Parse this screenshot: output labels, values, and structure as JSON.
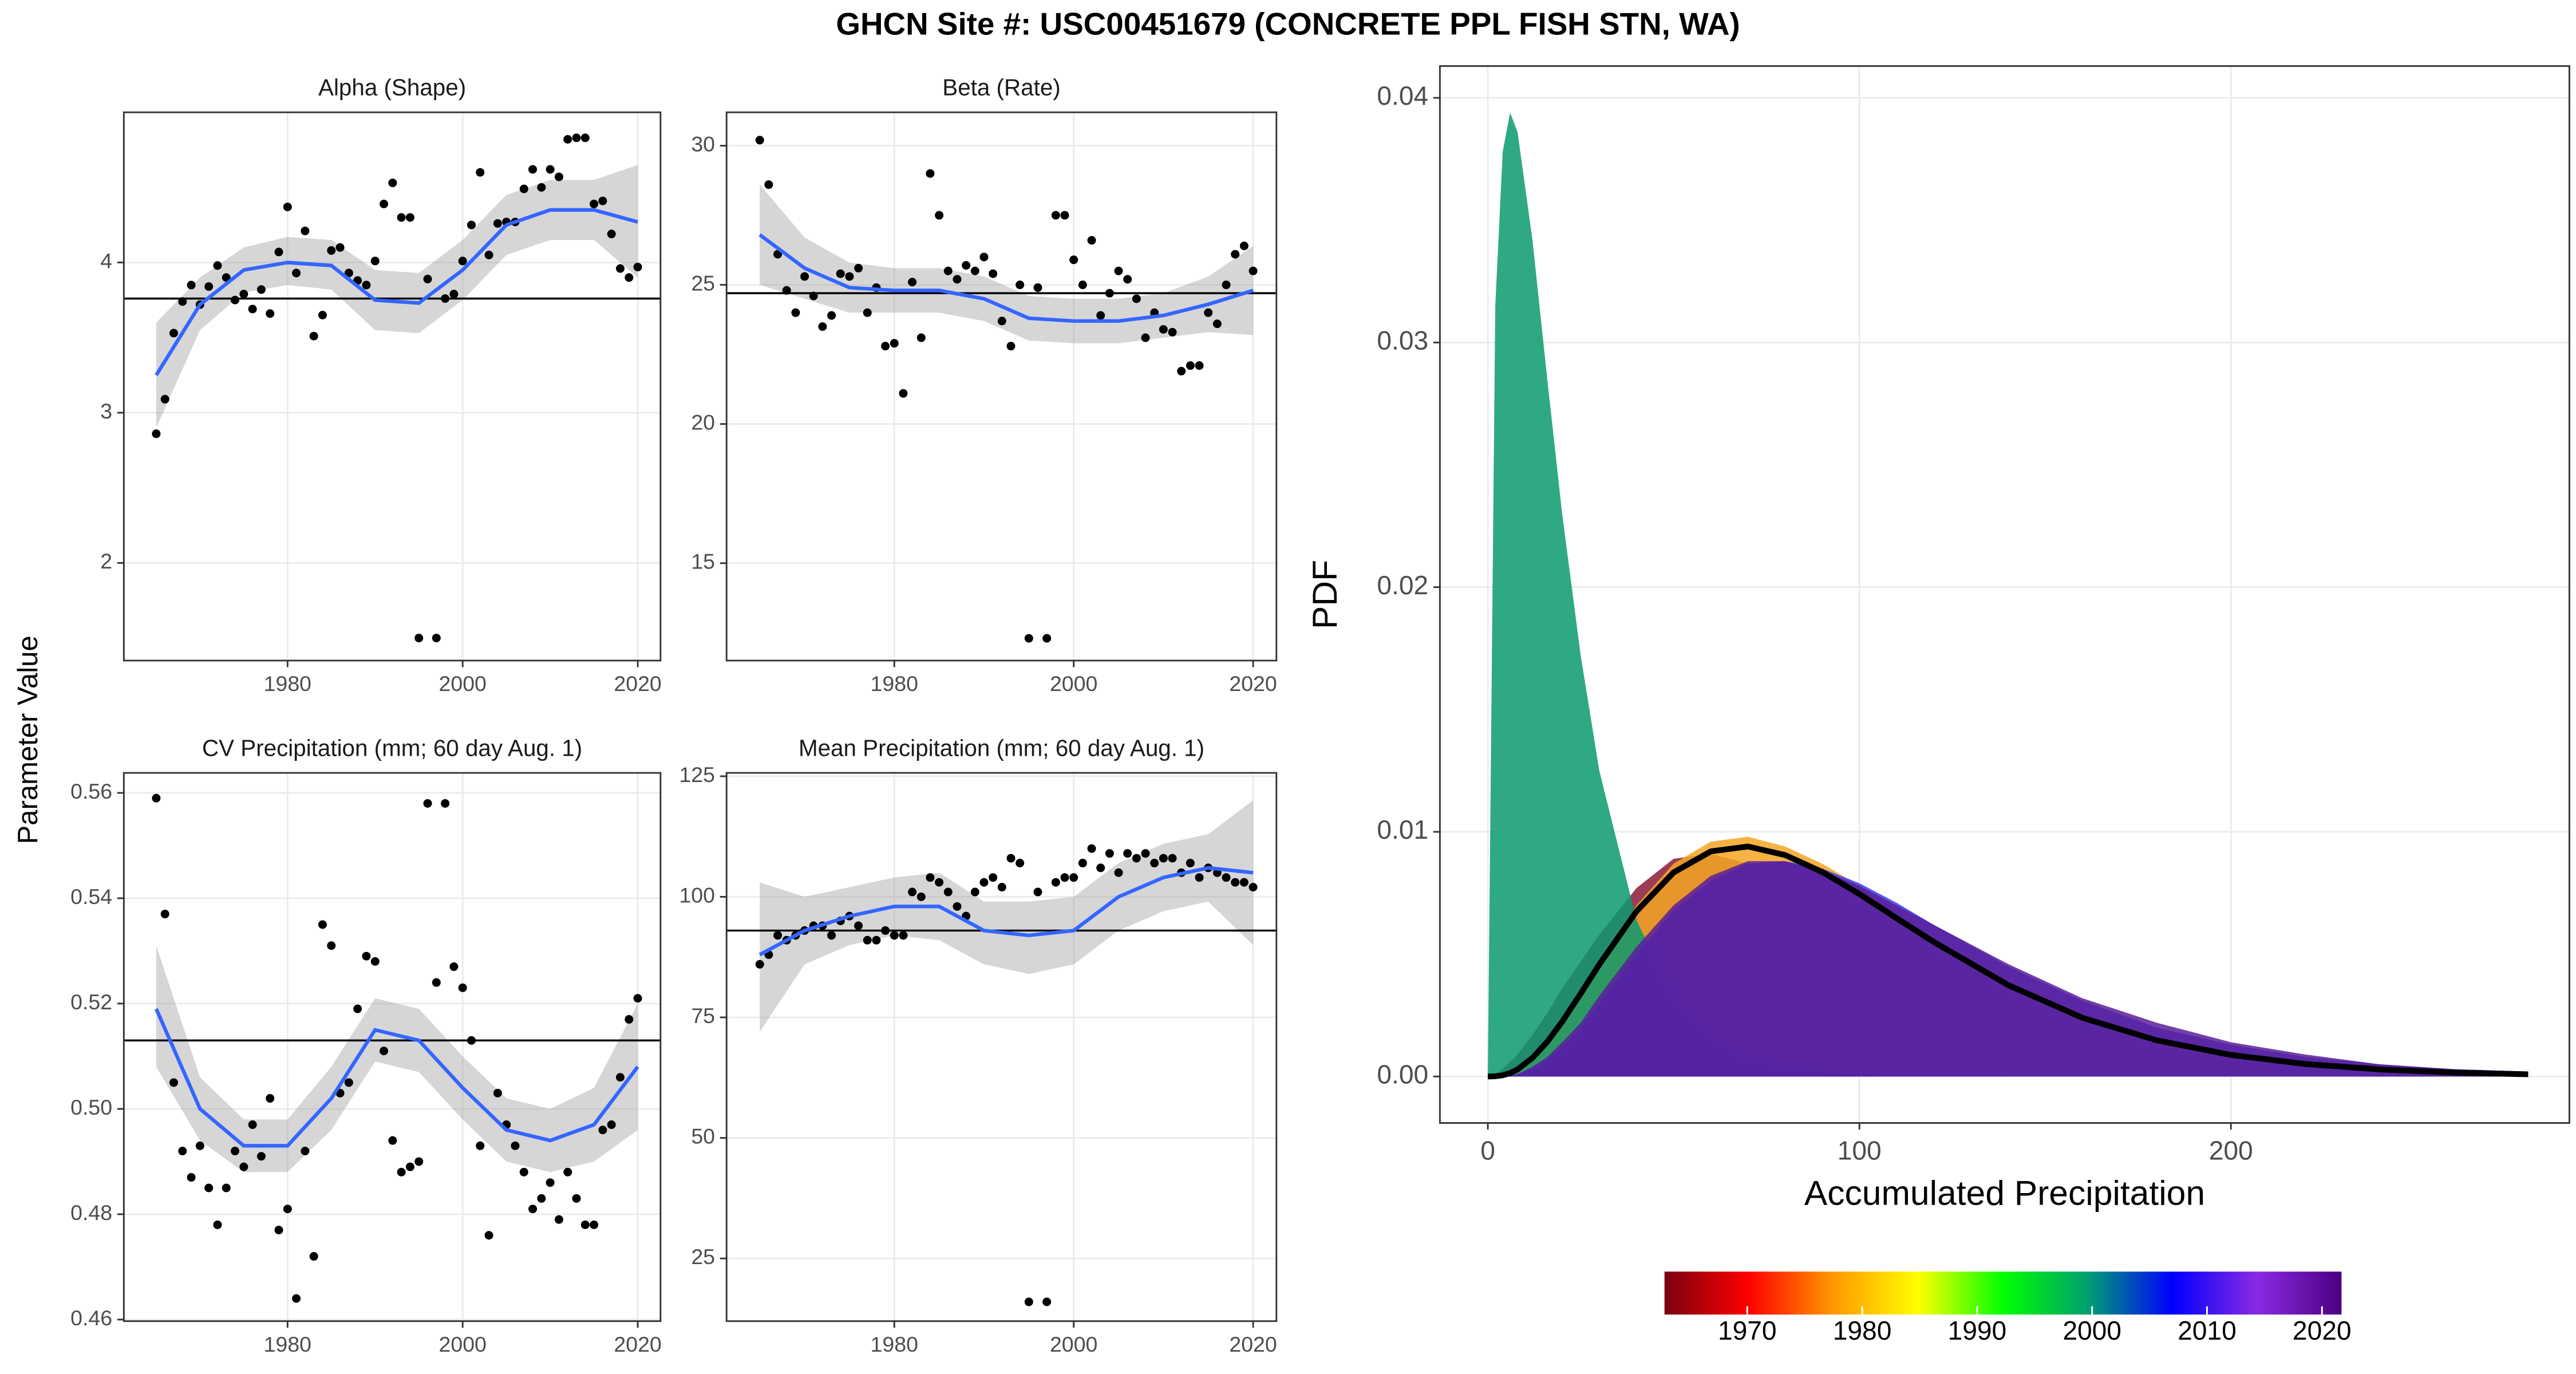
{
  "title": "GHCN Site #: USC00451679 (CONCRETE PPL FISH STN, WA)",
  "y_label": "Parameter Value",
  "chart_data": [
    {
      "type": "scatter",
      "title": "Alpha (Shape)",
      "x": [
        1965,
        1966,
        1967,
        1968,
        1969,
        1970,
        1971,
        1972,
        1973,
        1974,
        1975,
        1976,
        1977,
        1978,
        1979,
        1980,
        1981,
        1982,
        1983,
        1984,
        1985,
        1986,
        1987,
        1988,
        1989,
        1990,
        1991,
        1992,
        1993,
        1994,
        1995,
        1996,
        1997,
        1998,
        1999,
        2000,
        2001,
        2002,
        2003,
        2004,
        2005,
        2006,
        2007,
        2008,
        2009,
        2010,
        2011,
        2012,
        2013,
        2014,
        2015,
        2016,
        2017,
        2018,
        2019,
        2020
      ],
      "values": [
        2.86,
        3.09,
        3.53,
        3.74,
        3.85,
        3.72,
        3.84,
        3.98,
        3.9,
        3.75,
        3.79,
        3.69,
        3.82,
        3.66,
        4.07,
        4.37,
        3.93,
        4.21,
        3.51,
        3.65,
        4.08,
        4.1,
        3.93,
        3.88,
        3.85,
        4.01,
        4.39,
        4.53,
        4.3,
        4.3,
        1.5,
        3.89,
        1.5,
        3.76,
        3.79,
        4.01,
        4.25,
        4.6,
        4.05,
        4.26,
        4.27,
        4.27,
        4.49,
        4.62,
        4.5,
        4.62,
        4.57,
        4.82,
        4.83,
        4.83,
        4.39,
        4.41,
        4.19,
        3.96,
        3.9,
        3.97
      ],
      "color": "#000000",
      "hline": 3.76,
      "smooth": {
        "color": "#3366ff",
        "x": [
          1965,
          1970,
          1975,
          1980,
          1985,
          1990,
          1995,
          2000,
          2005,
          2010,
          2015,
          2020
        ],
        "values": [
          3.25,
          3.72,
          3.95,
          4.0,
          3.98,
          3.75,
          3.73,
          3.95,
          4.25,
          4.35,
          4.35,
          4.27
        ],
        "lower": [
          2.9,
          3.55,
          3.8,
          3.85,
          3.82,
          3.55,
          3.53,
          3.75,
          4.05,
          4.15,
          4.15,
          3.9
        ],
        "upper": [
          3.6,
          3.9,
          4.1,
          4.17,
          4.15,
          3.95,
          3.93,
          4.15,
          4.45,
          4.55,
          4.55,
          4.65
        ]
      },
      "xlim": [
        1961.3,
        2022.6
      ],
      "ylim": [
        1.35,
        5.0
      ],
      "xticks": [
        1980,
        2000,
        2020
      ],
      "yticks": [
        2,
        3,
        4
      ],
      "grid": true
    },
    {
      "type": "scatter",
      "title": "Beta (Rate)",
      "x": [
        1965,
        1966,
        1967,
        1968,
        1969,
        1970,
        1971,
        1972,
        1973,
        1974,
        1975,
        1976,
        1977,
        1978,
        1979,
        1980,
        1981,
        1982,
        1983,
        1984,
        1985,
        1986,
        1987,
        1988,
        1989,
        1990,
        1991,
        1992,
        1993,
        1994,
        1995,
        1996,
        1997,
        1998,
        1999,
        2000,
        2001,
        2002,
        2003,
        2004,
        2005,
        2006,
        2007,
        2008,
        2009,
        2010,
        2011,
        2012,
        2013,
        2014,
        2015,
        2016,
        2017,
        2018,
        2019,
        2020
      ],
      "values": [
        30.2,
        28.6,
        26.1,
        24.8,
        24.0,
        25.3,
        24.6,
        23.5,
        23.9,
        25.4,
        25.3,
        25.6,
        24.0,
        24.9,
        22.8,
        22.9,
        21.1,
        25.1,
        23.1,
        29.0,
        27.5,
        25.5,
        25.2,
        25.7,
        25.5,
        26.0,
        25.4,
        23.7,
        22.8,
        25.0,
        12.3,
        24.9,
        12.3,
        27.5,
        27.5,
        25.9,
        25.0,
        26.6,
        23.9,
        24.7,
        25.5,
        25.2,
        24.5,
        23.1,
        24.0,
        23.4,
        23.3,
        21.9,
        22.1,
        22.1,
        24.0,
        23.6,
        25.0,
        26.1,
        26.4,
        25.5
      ],
      "color": "#000000",
      "hline": 24.7,
      "smooth": {
        "color": "#3366ff",
        "x": [
          1965,
          1970,
          1975,
          1980,
          1985,
          1990,
          1995,
          2000,
          2005,
          2010,
          2015,
          2020
        ],
        "values": [
          26.8,
          25.6,
          24.9,
          24.8,
          24.8,
          24.5,
          23.8,
          23.7,
          23.7,
          23.9,
          24.3,
          24.8
        ],
        "lower": [
          25.0,
          24.5,
          24.0,
          24.0,
          24.0,
          23.7,
          23.0,
          22.9,
          22.9,
          23.1,
          23.3,
          23.2
        ],
        "upper": [
          28.6,
          26.7,
          25.8,
          25.6,
          25.6,
          25.3,
          24.6,
          24.5,
          24.5,
          24.7,
          25.3,
          26.4
        ]
      },
      "xlim": [
        1961.3,
        2022.6
      ],
      "ylim": [
        11.5,
        31.2
      ],
      "xticks": [
        1980,
        2000,
        2020
      ],
      "yticks": [
        15,
        20,
        25,
        30
      ],
      "grid": true
    },
    {
      "type": "scatter",
      "title": "CV Precipitation (mm; 60 day Aug. 1)",
      "x": [
        1965,
        1966,
        1967,
        1968,
        1969,
        1970,
        1971,
        1972,
        1973,
        1974,
        1975,
        1976,
        1977,
        1978,
        1979,
        1980,
        1981,
        1982,
        1983,
        1984,
        1985,
        1986,
        1987,
        1988,
        1989,
        1990,
        1991,
        1992,
        1993,
        1994,
        1995,
        1996,
        1997,
        1998,
        1999,
        2000,
        2001,
        2002,
        2003,
        2004,
        2005,
        2006,
        2007,
        2008,
        2009,
        2010,
        2011,
        2012,
        2013,
        2014,
        2015,
        2016,
        2017,
        2018,
        2019,
        2020
      ],
      "values": [
        0.559,
        0.537,
        0.505,
        0.492,
        0.487,
        0.493,
        0.485,
        0.478,
        0.485,
        0.492,
        0.489,
        0.497,
        0.491,
        0.502,
        0.477,
        0.481,
        0.464,
        0.492,
        0.472,
        0.535,
        0.531,
        0.503,
        0.505,
        0.519,
        0.529,
        0.528,
        0.511,
        0.494,
        0.488,
        0.489,
        0.49,
        0.558,
        0.524,
        0.558,
        0.527,
        0.523,
        0.513,
        0.493,
        0.476,
        0.503,
        0.497,
        0.493,
        0.488,
        0.481,
        0.483,
        0.486,
        0.479,
        0.488,
        0.483,
        0.478,
        0.478,
        0.496,
        0.497,
        0.506,
        0.517,
        0.521
      ],
      "color": "#000000",
      "hline": 0.513,
      "smooth": {
        "color": "#3366ff",
        "x": [
          1965,
          1970,
          1975,
          1980,
          1985,
          1990,
          1995,
          2000,
          2005,
          2010,
          2015,
          2020
        ],
        "values": [
          0.519,
          0.5,
          0.493,
          0.493,
          0.502,
          0.515,
          0.513,
          0.504,
          0.496,
          0.494,
          0.497,
          0.508
        ],
        "lower": [
          0.508,
          0.494,
          0.488,
          0.488,
          0.496,
          0.509,
          0.507,
          0.498,
          0.49,
          0.488,
          0.49,
          0.496
        ],
        "upper": [
          0.531,
          0.506,
          0.498,
          0.498,
          0.508,
          0.521,
          0.519,
          0.51,
          0.502,
          0.5,
          0.504,
          0.52
        ]
      },
      "xlim": [
        1961.3,
        2022.6
      ],
      "ylim": [
        0.4597,
        0.5638
      ],
      "xticks": [
        1980,
        2000,
        2020
      ],
      "yticks": [
        0.46,
        0.48,
        {
          "value": 0.5,
          "label": "0.50"
        },
        0.52,
        0.54,
        0.56
      ],
      "grid": true
    },
    {
      "type": "scatter",
      "title": "Mean Precipitation (mm; 60 day Aug. 1)",
      "x": [
        1965,
        1966,
        1967,
        1968,
        1969,
        1970,
        1971,
        1972,
        1973,
        1974,
        1975,
        1976,
        1977,
        1978,
        1979,
        1980,
        1981,
        1982,
        1983,
        1984,
        1985,
        1986,
        1987,
        1988,
        1989,
        1990,
        1991,
        1992,
        1993,
        1994,
        1995,
        1996,
        1997,
        1998,
        1999,
        2000,
        2001,
        2002,
        2003,
        2004,
        2005,
        2006,
        2007,
        2008,
        2009,
        2010,
        2011,
        2012,
        2013,
        2014,
        2015,
        2016,
        2017,
        2018,
        2019,
        2020
      ],
      "values": [
        86,
        88,
        92,
        91,
        92,
        93,
        94,
        94,
        92,
        95,
        96,
        94,
        91,
        91,
        93,
        92,
        92,
        101,
        100,
        104,
        103,
        101,
        98,
        96,
        101,
        103,
        104,
        102,
        108,
        107,
        16,
        101,
        16,
        103,
        104,
        104,
        107,
        110,
        106,
        109,
        105,
        109,
        108,
        109,
        107,
        108,
        108,
        105,
        107,
        104,
        106,
        105,
        104,
        103,
        103,
        102
      ],
      "color": "#000000",
      "hline": 93,
      "smooth": {
        "color": "#3366ff",
        "x": [
          1965,
          1970,
          1975,
          1980,
          1985,
          1990,
          1995,
          2000,
          2005,
          2010,
          2015,
          2020
        ],
        "values": [
          88,
          93,
          96,
          98,
          98,
          93,
          92,
          93,
          100,
          104,
          106,
          105
        ],
        "lower": [
          72,
          86,
          90,
          92,
          91,
          86,
          84,
          86,
          93,
          97,
          99,
          90
        ],
        "upper": [
          103,
          100,
          102,
          104,
          105,
          99,
          99,
          100,
          107,
          111,
          113,
          120
        ]
      },
      "xlim": [
        1961.3,
        2022.6
      ],
      "ylim": [
        12.0,
        125.7
      ],
      "xticks": [
        1980,
        2000,
        2020
      ],
      "yticks": [
        25,
        50,
        75,
        100,
        125
      ],
      "grid": true
    },
    {
      "type": "density",
      "xlabel": "Accumulated Precipitation",
      "ylabel": "PDF",
      "x": [
        0,
        2,
        4,
        6,
        8,
        12,
        16,
        20,
        25,
        30,
        40,
        50,
        60,
        70,
        80,
        90,
        100,
        110,
        120,
        140,
        160,
        180,
        200,
        220,
        240,
        260,
        280
      ],
      "series": [
        {
          "color": "#8b1a3a",
          "style": "area",
          "values": [
            0,
            0.0001,
            0.0003,
            0.0006,
            0.0009,
            0.0017,
            0.0026,
            0.0036,
            0.0047,
            0.0058,
            0.0077,
            0.0089,
            0.0091,
            0.0087,
            0.0079,
            0.0069,
            0.0059,
            0.0049,
            0.004,
            0.0026,
            0.0016,
            0.001,
            0.0006,
            0.0004,
            0.0002,
            0.0001,
            0.0001
          ]
        },
        {
          "color": "#f5a623",
          "style": "area",
          "values": [
            0,
            1e-05,
            5e-05,
            0.00015,
            0.0003,
            0.0008,
            0.0015,
            0.0023,
            0.0035,
            0.0048,
            0.007,
            0.0087,
            0.0096,
            0.0098,
            0.0094,
            0.0087,
            0.0078,
            0.0067,
            0.0057,
            0.0039,
            0.0025,
            0.0015,
            0.0009,
            0.0005,
            0.0003,
            0.0002,
            0.0001
          ]
        },
        {
          "color": "#0a9a6e",
          "style": "area",
          "values": [
            0,
            0.0315,
            0.0378,
            0.0394,
            0.0386,
            0.0342,
            0.0285,
            0.023,
            0.0172,
            0.0125,
            0.0064,
            0.0032,
            0.00154,
            0.00074,
            0.00035,
            0.00017,
            8e-05,
            4e-05,
            2e-05,
            0,
            0,
            0,
            0,
            0,
            0,
            0,
            0
          ]
        },
        {
          "color": "#3a3af0",
          "style": "area",
          "values": [
            0,
            0,
            2e-05,
            5e-05,
            0.0001,
            0.0003,
            0.0007,
            0.0012,
            0.002,
            0.003,
            0.005,
            0.0068,
            0.008,
            0.0087,
            0.0088,
            0.0085,
            0.0079,
            0.0071,
            0.0062,
            0.0045,
            0.0031,
            0.002,
            0.0013,
            0.0008,
            0.0005,
            0.0003,
            0.0002
          ]
        },
        {
          "color": "#5a1e9a",
          "style": "area",
          "values": [
            0,
            0,
            2e-05,
            5e-05,
            0.0001,
            0.0004,
            0.0008,
            0.0014,
            0.0022,
            0.0033,
            0.0053,
            0.007,
            0.0082,
            0.0088,
            0.0088,
            0.0084,
            0.0078,
            0.007,
            0.0062,
            0.0046,
            0.0032,
            0.0022,
            0.0014,
            0.0009,
            0.0005,
            0.0003,
            0.0002
          ]
        },
        {
          "color": "#000000",
          "style": "line",
          "values": [
            0,
            1e-05,
            5e-05,
            0.00014,
            0.00029,
            0.00076,
            0.00142,
            0.00224,
            0.00339,
            0.00458,
            0.00675,
            0.00834,
            0.0092,
            0.0094,
            0.00905,
            0.00836,
            0.00746,
            0.00647,
            0.0055,
            0.00374,
            0.0024,
            0.00148,
            0.00088,
            0.00051,
            0.00029,
            0.00016,
            9e-05
          ]
        }
      ],
      "xlim": [
        -12.9,
        291.1
      ],
      "ylim": [
        -0.0019,
        0.0413
      ],
      "xticks": [
        0,
        100,
        200
      ],
      "yticks": [
        {
          "value": 0,
          "label": "0.00"
        },
        0.01,
        0.02,
        0.03,
        0.04
      ],
      "grid": true
    }
  ],
  "colorbar": {
    "limits": [
      1962.8,
      2021.7
    ],
    "ticks": [
      1970,
      1980,
      1990,
      2000,
      2010,
      2020
    ],
    "colors": [
      "#7a0010",
      "#ff0000",
      "#ff9900",
      "#ffff00",
      "#00ff00",
      "#00a070",
      "#0000ff",
      "#8a2be2",
      "#4b0082"
    ]
  }
}
